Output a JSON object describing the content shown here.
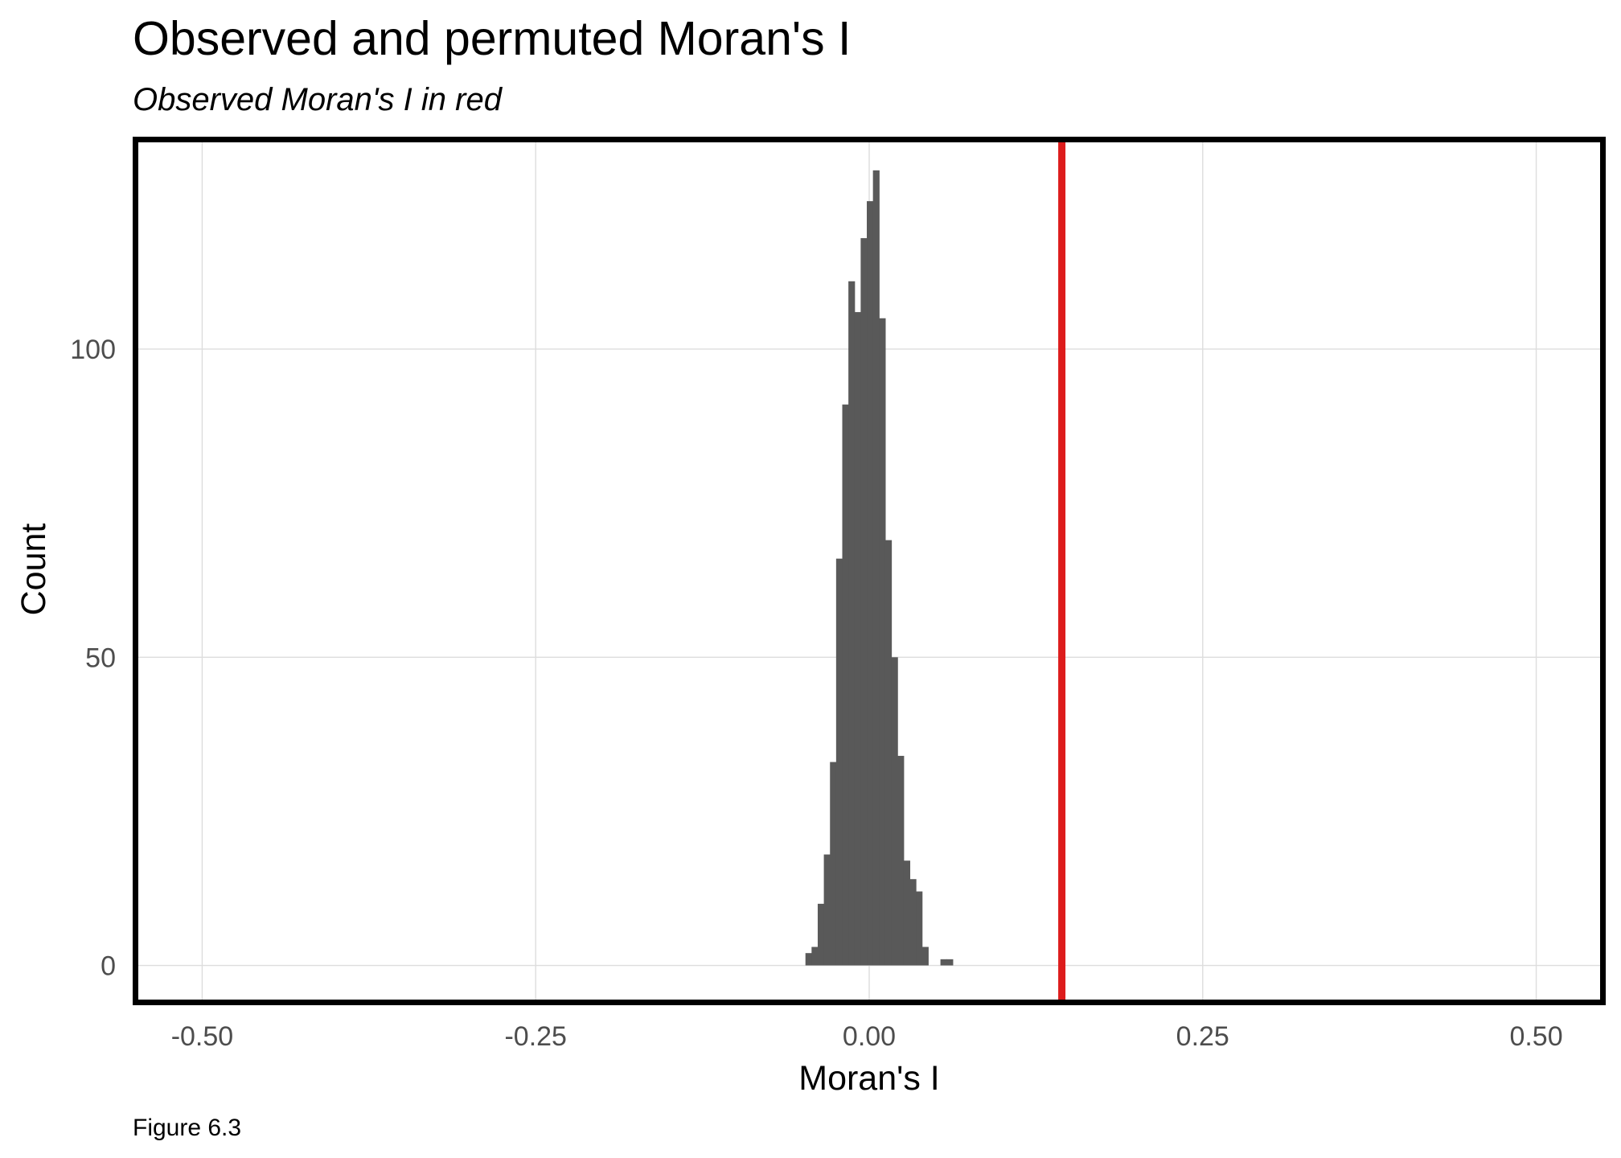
{
  "chart_data": {
    "type": "bar",
    "title": "Observed and permuted Moran's I",
    "subtitle": "Observed Moran's I in red",
    "xlabel": "Moran's I",
    "ylabel": "Count",
    "caption": "Figure 6.3",
    "xlim": [
      -0.55,
      0.55
    ],
    "ylim": [
      -6,
      134
    ],
    "x_ticks": [
      -0.5,
      -0.25,
      0,
      0.25,
      0.5
    ],
    "x_tick_labels": [
      "-0.50",
      "-0.25",
      "0.00",
      "0.25",
      "0.50"
    ],
    "y_ticks": [
      0,
      50,
      100
    ],
    "y_tick_labels": [
      "0",
      "50",
      "100"
    ],
    "grid": true,
    "bin_width": 0.00459,
    "bins": [
      {
        "x": -0.0455,
        "count": 2
      },
      {
        "x": -0.0409,
        "count": 3
      },
      {
        "x": -0.0363,
        "count": 10
      },
      {
        "x": -0.0317,
        "count": 18
      },
      {
        "x": -0.0271,
        "count": 33
      },
      {
        "x": -0.0225,
        "count": 66
      },
      {
        "x": -0.0179,
        "count": 91
      },
      {
        "x": -0.0133,
        "count": 111
      },
      {
        "x": -0.0087,
        "count": 106
      },
      {
        "x": -0.0041,
        "count": 118
      },
      {
        "x": 0.0005,
        "count": 124
      },
      {
        "x": 0.0051,
        "count": 129
      },
      {
        "x": 0.0097,
        "count": 105
      },
      {
        "x": 0.0143,
        "count": 69
      },
      {
        "x": 0.0189,
        "count": 50
      },
      {
        "x": 0.0235,
        "count": 34
      },
      {
        "x": 0.0281,
        "count": 17
      },
      {
        "x": 0.0327,
        "count": 14
      },
      {
        "x": 0.0373,
        "count": 12
      },
      {
        "x": 0.0419,
        "count": 3
      },
      {
        "x": 0.0557,
        "count": 1
      },
      {
        "x": 0.0603,
        "count": 1
      }
    ],
    "observed_value": 0.1444,
    "colors": {
      "bars": "#595959",
      "observed_line": "#dd1c1c",
      "grid": "#dddddd",
      "border": "#000000",
      "tick_text": "#4d4d4d"
    }
  }
}
